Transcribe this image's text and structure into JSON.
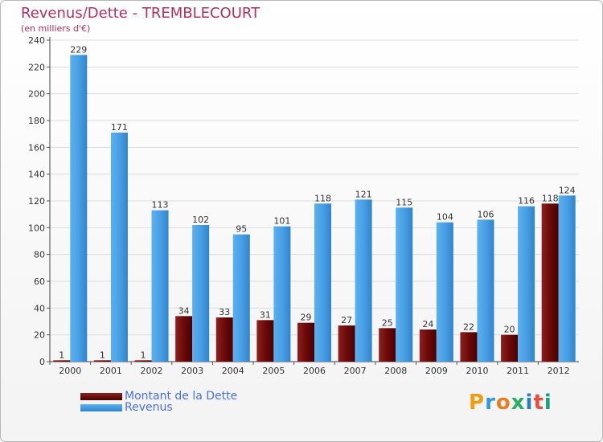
{
  "chart_data": {
    "type": "bar",
    "title": "Revenus/Dette - TREMBLECOURT",
    "subtitle": "(en milliers d'€)",
    "categories": [
      "2000",
      "2001",
      "2002",
      "2003",
      "2004",
      "2005",
      "2006",
      "2007",
      "2008",
      "2009",
      "2010",
      "2011",
      "2012"
    ],
    "series": [
      {
        "name": "Montant de la Dette",
        "color": "#6b0a0a",
        "values": [
          1,
          1,
          1,
          34,
          33,
          31,
          29,
          27,
          25,
          24,
          22,
          20,
          118
        ]
      },
      {
        "name": "Revenus",
        "color": "#4fa3e6",
        "values": [
          229,
          171,
          113,
          102,
          95,
          101,
          118,
          121,
          115,
          104,
          106,
          116,
          124
        ]
      }
    ],
    "ylim": [
      0,
      240
    ],
    "yticks": [
      0,
      20,
      40,
      60,
      80,
      100,
      120,
      140,
      160,
      180,
      200,
      220,
      240
    ],
    "grid": true,
    "legend_position": "bottom-left"
  },
  "logo": {
    "text": "Proxiti",
    "letters": [
      "P",
      "r",
      "o",
      "x",
      "i",
      "t",
      "i"
    ],
    "colors": [
      "#f39c12",
      "#3498db",
      "#e67e22",
      "#27ae60",
      "#2980b9",
      "#e74c3c",
      "#16a085"
    ]
  }
}
